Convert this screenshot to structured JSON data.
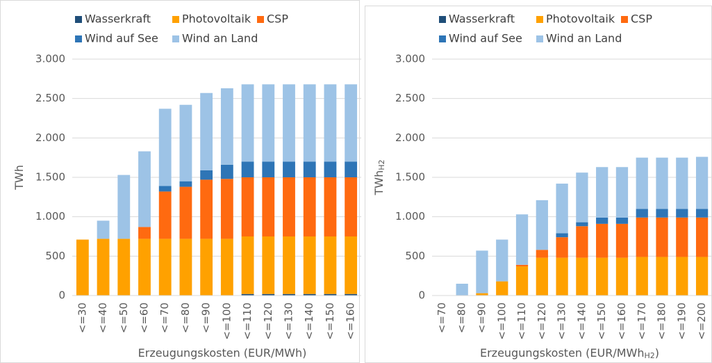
{
  "chart_data": [
    {
      "type": "bar",
      "stacked": true,
      "ylabel": "TWh",
      "xlabel": "Erzeugungskosten (EUR/MWh)",
      "categories": [
        "<=30",
        "<=40",
        "<=50",
        "<=60",
        "<=70",
        "<=80",
        "<=90",
        "<=100",
        "<=110",
        "<=120",
        "<=130",
        "<=140",
        "<=150",
        "<=160"
      ],
      "series": [
        {
          "name": "Wasserkraft",
          "color": "#1f4e79",
          "values": [
            0,
            0,
            0,
            0,
            0,
            0,
            0,
            0,
            20,
            20,
            20,
            20,
            20,
            20
          ]
        },
        {
          "name": "Photovoltaik",
          "color": "#ffa100",
          "values": [
            710,
            720,
            720,
            720,
            720,
            720,
            720,
            720,
            730,
            730,
            730,
            730,
            730,
            730
          ]
        },
        {
          "name": "CSP",
          "color": "#ff6a10",
          "values": [
            0,
            0,
            0,
            150,
            600,
            660,
            750,
            760,
            750,
            750,
            750,
            750,
            750,
            750
          ]
        },
        {
          "name": "Wind auf See",
          "color": "#2e75b6",
          "values": [
            0,
            0,
            0,
            0,
            70,
            70,
            120,
            180,
            200,
            200,
            200,
            200,
            200,
            200
          ]
        },
        {
          "name": "Wind an Land",
          "color": "#9dc3e6",
          "values": [
            0,
            230,
            810,
            960,
            980,
            970,
            980,
            970,
            980,
            980,
            980,
            980,
            980,
            980
          ]
        }
      ],
      "ylim": [
        0,
        3000
      ],
      "yticks": [
        0,
        500,
        {
          "value": 1000,
          "label": "1.000"
        },
        {
          "value": 1500,
          "label": "1.500"
        },
        {
          "value": 2000,
          "label": "2.000"
        },
        {
          "value": 2500,
          "label": "2.500"
        },
        {
          "value": 3000,
          "label": "3.000"
        }
      ]
    },
    {
      "type": "bar",
      "stacked": true,
      "ylabel": "TWh",
      "ylabel_sub": "H2",
      "xlabel": "Erzeugungskosten (EUR/MWh",
      "xlabel_sub": "H2",
      "xlabel_tail": ")",
      "categories": [
        "<=70",
        "<=80",
        "<=90",
        "<=100",
        "<=110",
        "<=120",
        "<=130",
        "<=140",
        "<=150",
        "<=160",
        "<=170",
        "<=180",
        "<=190",
        "<=200"
      ],
      "series": [
        {
          "name": "Wasserkraft",
          "color": "#1f4e79",
          "values": [
            0,
            0,
            0,
            0,
            0,
            0,
            0,
            0,
            0,
            0,
            0,
            0,
            0,
            0
          ]
        },
        {
          "name": "Photovoltaik",
          "color": "#ffa100",
          "values": [
            0,
            0,
            30,
            180,
            370,
            480,
            480,
            480,
            480,
            480,
            490,
            490,
            490,
            490
          ]
        },
        {
          "name": "CSP",
          "color": "#ff6a10",
          "values": [
            0,
            0,
            0,
            0,
            20,
            100,
            260,
            400,
            430,
            430,
            500,
            500,
            500,
            500
          ]
        },
        {
          "name": "Wind auf See",
          "color": "#2e75b6",
          "values": [
            0,
            0,
            0,
            0,
            0,
            0,
            50,
            50,
            80,
            80,
            110,
            110,
            110,
            110
          ]
        },
        {
          "name": "Wind an Land",
          "color": "#9dc3e6",
          "values": [
            0,
            150,
            540,
            530,
            640,
            630,
            630,
            630,
            640,
            640,
            650,
            650,
            650,
            660
          ]
        }
      ],
      "ylim": [
        0,
        3000
      ],
      "yticks": [
        0,
        500,
        {
          "value": 1000,
          "label": "1.000"
        },
        {
          "value": 1500,
          "label": "1.500"
        },
        {
          "value": 2000,
          "label": "2.000"
        },
        {
          "value": 2500,
          "label": "2.500"
        },
        {
          "value": 3000,
          "label": "3.000"
        }
      ]
    }
  ]
}
